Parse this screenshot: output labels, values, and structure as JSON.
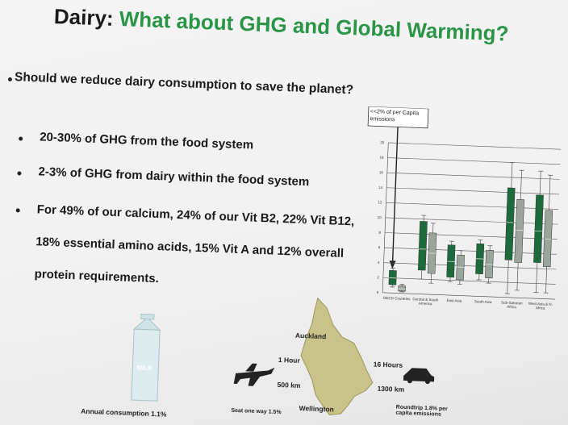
{
  "title": {
    "prefix": "Dairy:",
    "main": "What about GHG and Global Warming?"
  },
  "question": "Should we reduce dairy consumption to save the planet?",
  "bullets": [
    "20-30% of GHG from the food system",
    "2-3% of GHG from dairy within the food system",
    "For 49% of our calcium, 24% of our Vit B2, 22% Vit B12, 18% essential amino acids, 15% Vit A and 12% overall protein requirements."
  ],
  "chart_data": {
    "type": "box",
    "annotation": "<<2% of per Capita emissions",
    "categories": [
      "OECD Countries",
      "Central & South America",
      "East Asia",
      "South Asia",
      "Sub-Saharan Africa",
      "West Asia & N. Africa"
    ],
    "ylim": [
      0,
      20
    ],
    "yticks": [
      0,
      2,
      4,
      6,
      8,
      10,
      12,
      14,
      16,
      18,
      20
    ],
    "grid": true,
    "series": [
      {
        "color": "#1d6b3c",
        "boxes": [
          {
            "min": 0.8,
            "q1": 1.1,
            "median": 2,
            "q3": 3,
            "max": 3.3
          },
          {
            "min": 2,
            "q1": 3.2,
            "median": 6,
            "q3": 9.7,
            "max": 10.5
          },
          {
            "min": 1.8,
            "q1": 2.4,
            "median": 4.5,
            "q3": 6.7,
            "max": 7.2
          },
          {
            "min": 2.2,
            "q1": 3,
            "median": 5,
            "q3": 7,
            "max": 7.5
          },
          {
            "min": 0.5,
            "q1": 5,
            "median": 10,
            "q3": 14.6,
            "max": 18
          },
          {
            "min": 0.8,
            "q1": 4.8,
            "median": 9,
            "q3": 13.8,
            "max": 17
          }
        ]
      },
      {
        "color": "#9aa59c",
        "boxes": [
          {
            "min": 0.2,
            "q1": 0.3,
            "median": 0.6,
            "q3": 1,
            "max": 1.2
          },
          {
            "min": 1.5,
            "q1": 2.8,
            "median": 5.5,
            "q3": 8.2,
            "max": 9.5
          },
          {
            "min": 1.5,
            "q1": 2.1,
            "median": 3.8,
            "q3": 5.4,
            "max": 6
          },
          {
            "min": 1.8,
            "q1": 2.5,
            "median": 4.3,
            "q3": 6.2,
            "max": 6.8
          },
          {
            "min": 1,
            "q1": 4.7,
            "median": 9,
            "q3": 13.1,
            "max": 17
          },
          {
            "min": 0.8,
            "q1": 4.3,
            "median": 8,
            "q3": 11.8,
            "max": 16.5
          }
        ]
      }
    ]
  },
  "infographic": {
    "milk": "MILK",
    "milk_caption": "Annual consumption 1.1%",
    "flight_time": "1 Hour",
    "flight_distance": "500 km",
    "flight_caption": "Seat one way 1.5%",
    "drive_time": "16 Hours",
    "drive_distance": "1300 km",
    "drive_caption": "Roundtrip 1.8% per capita emissions",
    "city_north": "Auckland",
    "city_south": "Wellington"
  }
}
